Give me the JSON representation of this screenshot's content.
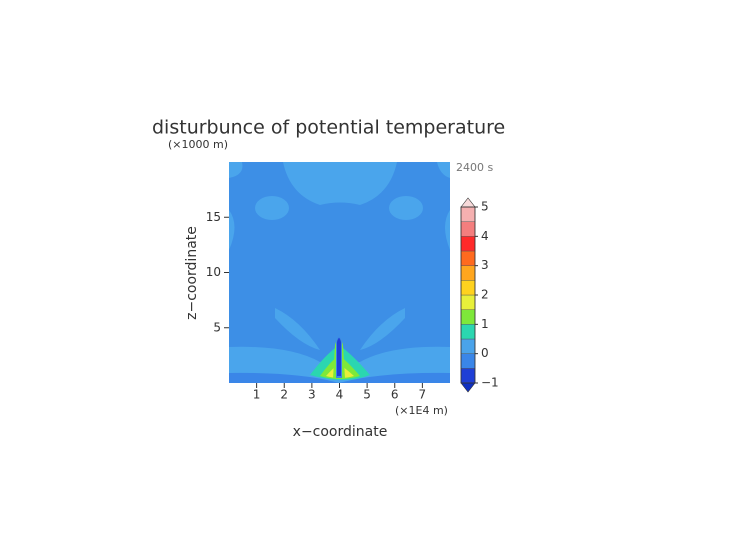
{
  "chart_data": {
    "type": "contour",
    "title": "disturbunce of potential temperature",
    "y_unit": "(×1000 m)",
    "x_unit": "(×1E4 m)",
    "time_label": "2400 s",
    "x_label": "x−coordinate",
    "y_label": "z−coordinate",
    "xlim": [
      0,
      8
    ],
    "ylim": [
      0,
      20
    ],
    "xticks": [
      1,
      2,
      3,
      4,
      5,
      6,
      7
    ],
    "yticks": [
      5,
      10,
      15
    ],
    "colorbar": {
      "levels": [
        -1,
        -0.5,
        0,
        0.5,
        1,
        1.5,
        2,
        2.5,
        3,
        3.5,
        4,
        4.5,
        5
      ],
      "colors": [
        "#1f3fd6",
        "#3a86e8",
        "#4aa3ea",
        "#2bd6b0",
        "#7ee83a",
        "#e8f03a",
        "#ffd21e",
        "#ffa61e",
        "#ff6a1e",
        "#ff2a2a",
        "#f47e7e",
        "#f5b0b0"
      ],
      "under_color": "#1030c0",
      "over_color": "#f7dada",
      "ticks": [
        {
          "value": -1,
          "label": "−1"
        },
        0,
        1,
        2,
        3,
        4,
        5
      ]
    }
  }
}
